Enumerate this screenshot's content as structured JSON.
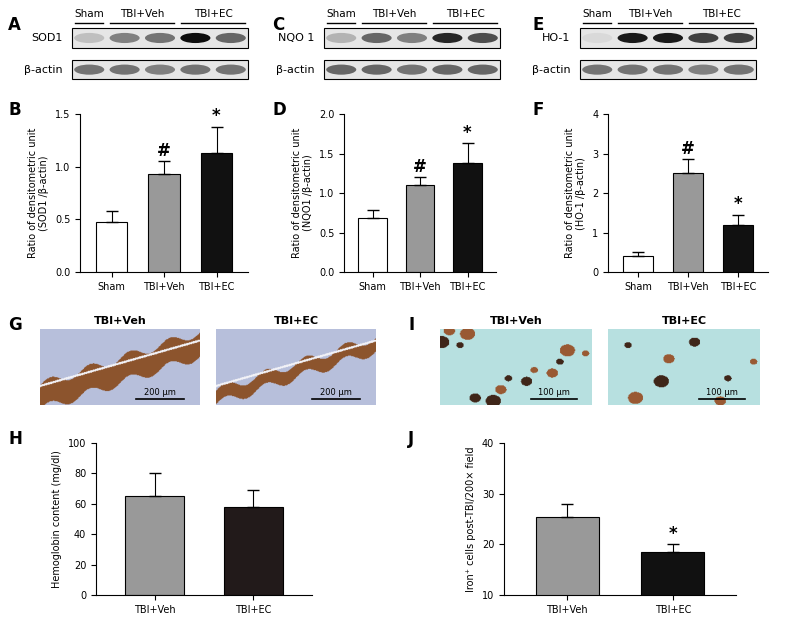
{
  "chart_data": [
    {
      "type": "bar",
      "panel": "B",
      "categories": [
        "Sham",
        "TBI+Veh",
        "TBI+EC"
      ],
      "values": [
        0.48,
        0.93,
        1.13
      ],
      "errors": [
        0.1,
        0.12,
        0.25
      ],
      "colors": [
        "#ffffff",
        "#999999",
        "#111111"
      ],
      "y_label": "Ratio of densitometric unit\n(SOD1 /β-actin)",
      "ylim": [
        0.0,
        1.5
      ],
      "yticks": [
        0.0,
        0.5,
        1.0,
        1.5
      ],
      "annotations": [
        {
          "category": "TBI+Veh",
          "text": "#"
        },
        {
          "category": "TBI+EC",
          "text": "*"
        }
      ]
    },
    {
      "type": "bar",
      "panel": "D",
      "categories": [
        "Sham",
        "TBI+Veh",
        "TBI+EC"
      ],
      "values": [
        0.68,
        1.1,
        1.38
      ],
      "errors": [
        0.1,
        0.1,
        0.25
      ],
      "colors": [
        "#ffffff",
        "#999999",
        "#111111"
      ],
      "y_label": "Ratio of densitometric unit\n(NQO1 /β-actin)",
      "ylim": [
        0.0,
        2.0
      ],
      "yticks": [
        0.0,
        0.5,
        1.0,
        1.5,
        2.0
      ],
      "annotations": [
        {
          "category": "TBI+Veh",
          "text": "#"
        },
        {
          "category": "TBI+EC",
          "text": "*"
        }
      ]
    },
    {
      "type": "bar",
      "panel": "F",
      "categories": [
        "Sham",
        "TBI+Veh",
        "TBI+EC"
      ],
      "values": [
        0.4,
        2.5,
        1.2
      ],
      "errors": [
        0.1,
        0.35,
        0.25
      ],
      "colors": [
        "#ffffff",
        "#999999",
        "#111111"
      ],
      "y_label": "Ratio of densitometric unit\n(HO-1 /β-actin)",
      "ylim": [
        0,
        4
      ],
      "yticks": [
        0,
        1,
        2,
        3,
        4
      ],
      "annotations": [
        {
          "category": "TBI+Veh",
          "text": "#"
        },
        {
          "category": "TBI+EC",
          "text": "*"
        }
      ]
    },
    {
      "type": "bar",
      "panel": "H",
      "categories": [
        "TBI+Veh",
        "TBI+EC"
      ],
      "values": [
        65,
        58
      ],
      "errors": [
        15,
        11
      ],
      "colors": [
        "#999999",
        "#221a1a"
      ],
      "y_label": "Hemoglobin content (mg/dl)",
      "ylim": [
        0,
        100
      ],
      "yticks": [
        0,
        20,
        40,
        60,
        80,
        100
      ]
    },
    {
      "type": "bar",
      "panel": "J",
      "categories": [
        "TBI+Veh",
        "TBI+EC"
      ],
      "values": [
        25.5,
        18.5
      ],
      "errors": [
        2.5,
        1.5
      ],
      "colors": [
        "#999999",
        "#111111"
      ],
      "y_label": "Iron⁺ cells post-TBI/200× field",
      "ylim": [
        10,
        40
      ],
      "yticks": [
        10,
        20,
        30,
        40
      ],
      "annotations": [
        {
          "category": "TBI+EC",
          "text": "*"
        }
      ]
    }
  ],
  "blots": [
    {
      "panel": "A",
      "lane_groups": [
        {
          "label": "Sham",
          "lanes": 1
        },
        {
          "label": "TBI+Veh",
          "lanes": 2
        },
        {
          "label": "TBI+EC",
          "lanes": 2
        }
      ],
      "rows": [
        {
          "label": "SOD1",
          "bands": [
            0.25,
            0.5,
            0.55,
            0.95,
            0.6
          ]
        },
        {
          "label": "β-actin",
          "bands": [
            0.55,
            0.55,
            0.5,
            0.55,
            0.55
          ]
        }
      ]
    },
    {
      "panel": "C",
      "lane_groups": [
        {
          "label": "Sham",
          "lanes": 1
        },
        {
          "label": "TBI+Veh",
          "lanes": 2
        },
        {
          "label": "TBI+EC",
          "lanes": 2
        }
      ],
      "rows": [
        {
          "label": "NQO 1",
          "bands": [
            0.3,
            0.6,
            0.5,
            0.85,
            0.7
          ]
        },
        {
          "label": "β-actin",
          "bands": [
            0.6,
            0.6,
            0.55,
            0.6,
            0.6
          ]
        }
      ]
    },
    {
      "panel": "E",
      "lane_groups": [
        {
          "label": "Sham",
          "lanes": 1
        },
        {
          "label": "TBI+Veh",
          "lanes": 2
        },
        {
          "label": "TBI+EC",
          "lanes": 2
        }
      ],
      "rows": [
        {
          "label": "HO-1",
          "bands": [
            0.15,
            0.9,
            0.9,
            0.75,
            0.75
          ]
        },
        {
          "label": "β-actin",
          "bands": [
            0.55,
            0.55,
            0.55,
            0.5,
            0.55
          ]
        }
      ]
    }
  ],
  "images": [
    {
      "panel": "G",
      "labels": [
        "TBI+Veh",
        "TBI+EC"
      ],
      "scale_bar": "200 μm"
    },
    {
      "panel": "I",
      "labels": [
        "TBI+Veh",
        "TBI+EC"
      ],
      "scale_bar": "100 μm"
    }
  ]
}
